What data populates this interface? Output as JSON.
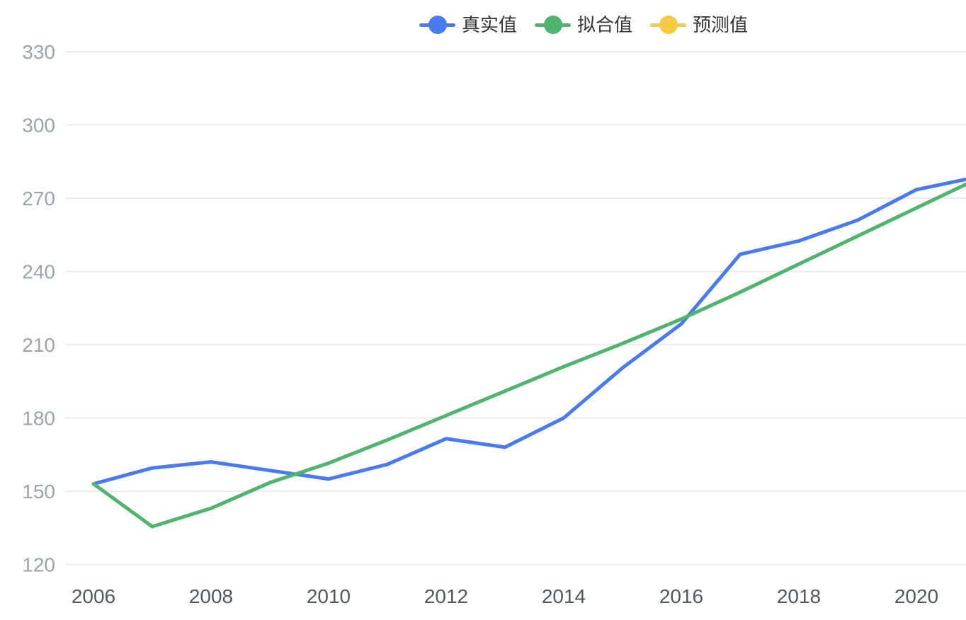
{
  "chart_data": {
    "type": "line",
    "x": [
      2006,
      2007,
      2008,
      2009,
      2010,
      2011,
      2012,
      2013,
      2014,
      2015,
      2016,
      2017,
      2018,
      2019,
      2020,
      2021
    ],
    "x_tick_labels": [
      "2006",
      "2008",
      "2010",
      "2012",
      "2014",
      "2016",
      "2018",
      "2020"
    ],
    "x_tick_years": [
      2006,
      2008,
      2010,
      2012,
      2014,
      2016,
      2018,
      2020
    ],
    "series": [
      {
        "name": "真实值",
        "color": "#4A7AEF",
        "values": [
          153,
          159.5,
          162,
          158.5,
          155,
          161,
          171.5,
          168,
          180,
          200.5,
          218.5,
          247,
          252.5,
          261,
          273.5,
          278.5
        ]
      },
      {
        "name": "拟合值",
        "color": "#4FB46F",
        "values": [
          153,
          135.5,
          143,
          153.5,
          161.5,
          171,
          181,
          191,
          201,
          210.5,
          220.5,
          231.5,
          243,
          254.5,
          266,
          277.5
        ]
      },
      {
        "name": "预测值",
        "color": "#F6CB44",
        "values": []
      }
    ],
    "title": "",
    "xlabel": "",
    "ylabel": "",
    "ylim": [
      120,
      330
    ],
    "yticks": [
      120,
      150,
      180,
      210,
      240,
      270,
      300,
      330
    ],
    "legend_position": "top",
    "grid": "horizontal-only",
    "legend_entries": [
      "真实值",
      "拟合值",
      "预测值"
    ]
  },
  "colors": {
    "background": "#FFFFFF",
    "gridline": "#ECECEE",
    "y_tick_label": "#9FA2A8",
    "x_tick_label": "#54575D",
    "legend_text": "#333333",
    "series_actual": "#4A7AEF",
    "series_fitted": "#4FB46F",
    "series_forecast": "#F6CB44"
  }
}
